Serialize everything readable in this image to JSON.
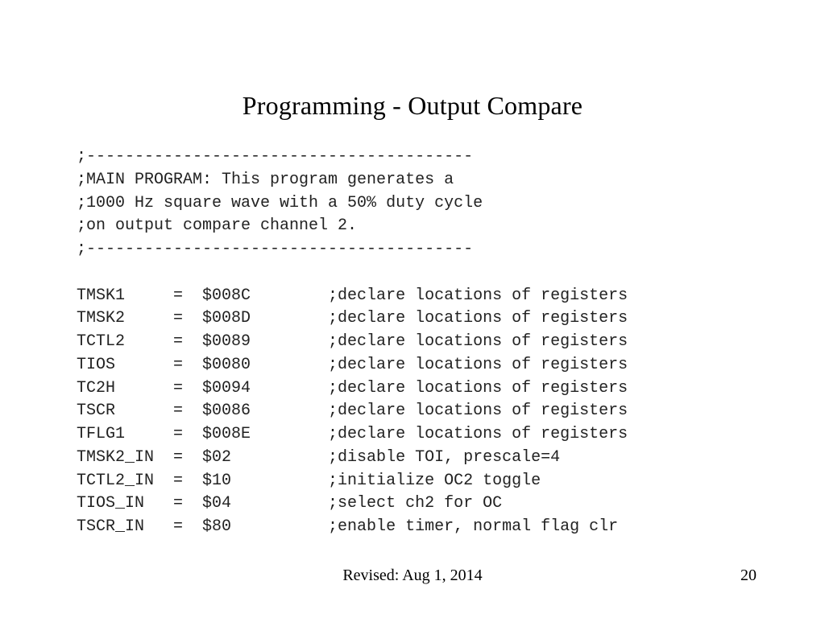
{
  "slide": {
    "title": "Programming - Output Compare",
    "code_lines": [
      ";----------------------------------------",
      ";MAIN PROGRAM: This program generates a",
      ";1000 Hz square wave with a 50% duty cycle",
      ";on output compare channel 2.",
      ";----------------------------------------",
      "",
      "TMSK1     =  $008C        ;declare locations of registers",
      "TMSK2     =  $008D        ;declare locations of registers",
      "TCTL2     =  $0089        ;declare locations of registers",
      "TIOS      =  $0080        ;declare locations of registers",
      "TC2H      =  $0094        ;declare locations of registers",
      "TSCR      =  $0086        ;declare locations of registers",
      "TFLG1     =  $008E        ;declare locations of registers",
      "TMSK2_IN  =  $02          ;disable TOI, prescale=4",
      "TCTL2_IN  =  $10          ;initialize OC2 toggle",
      "TIOS_IN   =  $04          ;select ch2 for OC",
      "TSCR_IN   =  $80          ;enable timer, normal flag clr"
    ],
    "footer": {
      "revised": "Revised: Aug 1, 2014",
      "page_number": "20"
    }
  },
  "colors": {
    "background": "#ffffff",
    "text": "#000000",
    "code_text": "#222222"
  }
}
